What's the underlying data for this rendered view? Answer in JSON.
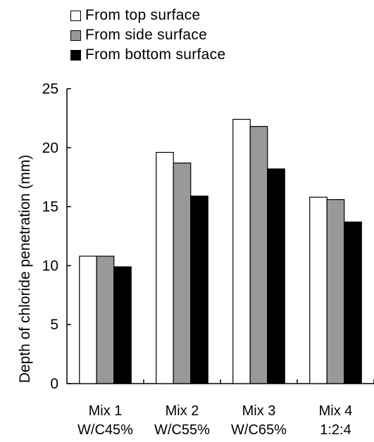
{
  "chart_data": {
    "type": "bar",
    "categories": [
      {
        "line1": "Mix 1",
        "line2": "W/C45%"
      },
      {
        "line1": "Mix 2",
        "line2": "W/C55%"
      },
      {
        "line1": "Mix 3",
        "line2": "W/C65%"
      },
      {
        "line1": "Mix 4",
        "line2": "1:2:4"
      }
    ],
    "series": [
      {
        "name": "From top surface",
        "color": "#ffffff",
        "values": [
          10.8,
          19.6,
          22.4,
          15.8
        ]
      },
      {
        "name": "From side surface",
        "color": "#999999",
        "values": [
          10.8,
          18.7,
          21.8,
          15.6
        ]
      },
      {
        "name": "From bottom surface",
        "color": "#000000",
        "values": [
          9.9,
          15.9,
          18.2,
          13.7
        ]
      }
    ],
    "ylabel": "Depth of chloride penetration (mm)",
    "xlabel": "",
    "ylim": [
      0,
      25
    ],
    "yticks": [
      "0",
      "5",
      "10",
      "15",
      "20",
      "25"
    ],
    "legend_position": "top-left",
    "grid": false
  }
}
